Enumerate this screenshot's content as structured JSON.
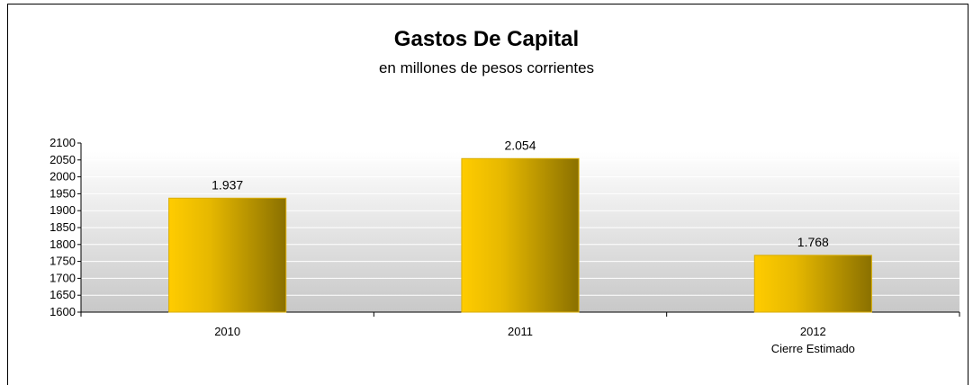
{
  "chart_data": {
    "type": "bar",
    "title": "Gastos De Capital",
    "subtitle": "en millones de pesos corrientes",
    "categories": [
      "2010",
      "2011",
      "2012"
    ],
    "category_sublabels": [
      "",
      "",
      "Cierre Estimado"
    ],
    "values": [
      1937,
      2054,
      1768
    ],
    "data_labels": [
      "1.937",
      "2.054",
      "1.768"
    ],
    "ylim": [
      1600,
      2100
    ],
    "yticks": [
      1600,
      1650,
      1700,
      1750,
      1800,
      1850,
      1900,
      1950,
      2000,
      2050,
      2100
    ],
    "grid": true,
    "legend": "none",
    "colors": {
      "bar_light": "#ffcc00",
      "bar_dark": "#8a7000",
      "plot_bg_top": "#ffffff",
      "plot_bg_bottom": "#c8c8c8"
    }
  }
}
